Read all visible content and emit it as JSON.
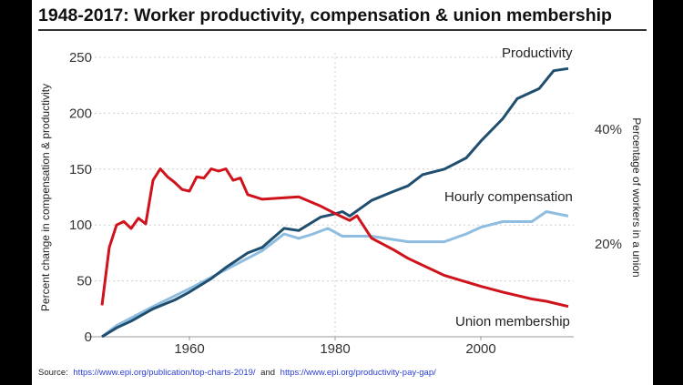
{
  "chart_data": {
    "type": "line",
    "title": "1948-2017: Worker productivity, compensation & union membership",
    "ylabel": "Percent change in compensation & productivity",
    "y2label": "Percentage of workers in a union",
    "xlim": [
      1946,
      2014
    ],
    "ylim": [
      0,
      250
    ],
    "y2lim": [
      0,
      52
    ],
    "x_ticks": [
      1960,
      1980,
      2000
    ],
    "y_ticks": [
      0,
      50,
      100,
      150,
      200,
      250
    ],
    "y2_ticks": [
      20,
      40
    ],
    "y2_tick_labels": [
      "20%",
      "40%"
    ],
    "grid": true,
    "series": [
      {
        "name": "Productivity",
        "axis": "left",
        "color": "#1f4e6e",
        "x": [
          1948,
          1950,
          1952,
          1955,
          1958,
          1960,
          1963,
          1965,
          1968,
          1970,
          1973,
          1975,
          1978,
          1980,
          1981,
          1982,
          1985,
          1988,
          1990,
          1992,
          1995,
          1998,
          2000,
          2003,
          2005,
          2008,
          2010,
          2012
        ],
        "y": [
          0,
          8,
          14,
          25,
          33,
          40,
          52,
          62,
          75,
          80,
          97,
          95,
          107,
          110,
          112,
          108,
          122,
          130,
          135,
          145,
          150,
          160,
          175,
          195,
          213,
          222,
          238,
          240
        ]
      },
      {
        "name": "Hourly compensation",
        "axis": "left",
        "color": "#8fbde0",
        "x": [
          1948,
          1950,
          1955,
          1960,
          1965,
          1970,
          1973,
          1975,
          1977,
          1979,
          1981,
          1985,
          1990,
          1995,
          1998,
          2000,
          2003,
          2007,
          2009,
          2012
        ],
        "y": [
          0,
          10,
          27,
          43,
          60,
          77,
          92,
          88,
          92,
          97,
          90,
          90,
          85,
          85,
          92,
          98,
          103,
          103,
          112,
          108
        ]
      },
      {
        "name": "Union membership",
        "axis": "right",
        "color": "#d0121b",
        "x": [
          1948,
          1949,
          1950,
          1951,
          1952,
          1953,
          1954,
          1955,
          1956,
          1957,
          1958,
          1959,
          1960,
          1961,
          1962,
          1963,
          1964,
          1965,
          1966,
          1967,
          1968,
          1970,
          1975,
          1978,
          1980,
          1982,
          1983,
          1985,
          1988,
          1990,
          1995,
          2000,
          2003,
          2005,
          2007,
          2009,
          2012
        ],
        "y": [
          9.3,
          19.4,
          23.3,
          23.9,
          22.7,
          24.5,
          23.5,
          31.1,
          33.1,
          31.7,
          30.7,
          29.5,
          29.2,
          31.7,
          31.5,
          33.1,
          32.7,
          33.1,
          31.1,
          31.5,
          28.6,
          27.8,
          28.2,
          26.6,
          25.3,
          24.1,
          24.9,
          21.0,
          19.0,
          17.5,
          14.5,
          12.6,
          11.6,
          11.0,
          10.4,
          10.0,
          9.1
        ]
      }
    ],
    "series_labels": [
      "Productivity",
      "Hourly compensation",
      "Union membership"
    ],
    "source": {
      "prefix": "Source:",
      "link1": "https://www.epi.org/publication/top-charts-2019/",
      "joiner": "and",
      "link2": "https://www.epi.org/productivity-pay-gap/"
    }
  }
}
